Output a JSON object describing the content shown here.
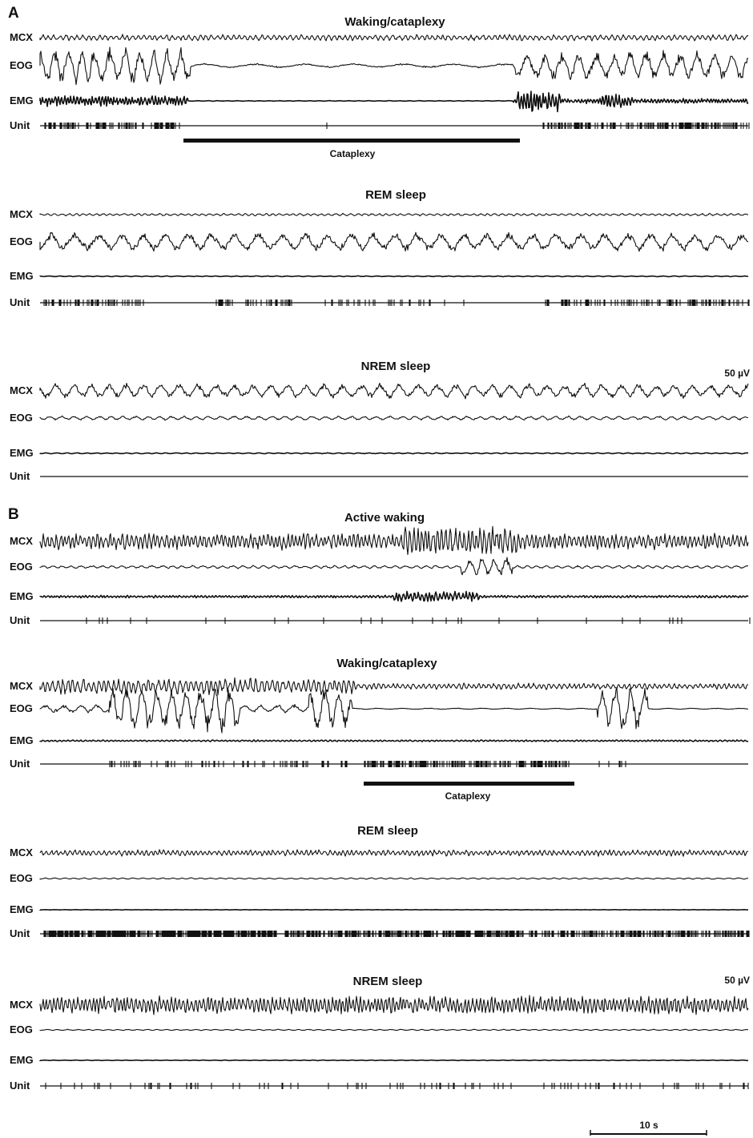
{
  "panels": [
    {
      "id": "A",
      "label": "A",
      "sections": [
        {
          "title": "Waking/cataplexy",
          "bar_label": "Cataplexy",
          "scale": ""
        },
        {
          "title": "REM sleep",
          "bar_label": "",
          "scale": ""
        },
        {
          "title": "NREM sleep",
          "bar_label": "",
          "scale": "50 µV"
        }
      ]
    },
    {
      "id": "B",
      "label": "B",
      "sections": [
        {
          "title": "Active waking",
          "bar_label": "",
          "scale": ""
        },
        {
          "title": "Waking/cataplexy",
          "bar_label": "Cataplexy",
          "scale": ""
        },
        {
          "title": "REM sleep",
          "bar_label": "",
          "scale": ""
        },
        {
          "title": "NREM sleep",
          "bar_label": "",
          "scale": "50 µV"
        }
      ]
    }
  ],
  "channels": [
    "MCX",
    "EOG",
    "EMG",
    "Unit"
  ],
  "time_scale_label": "10 s"
}
